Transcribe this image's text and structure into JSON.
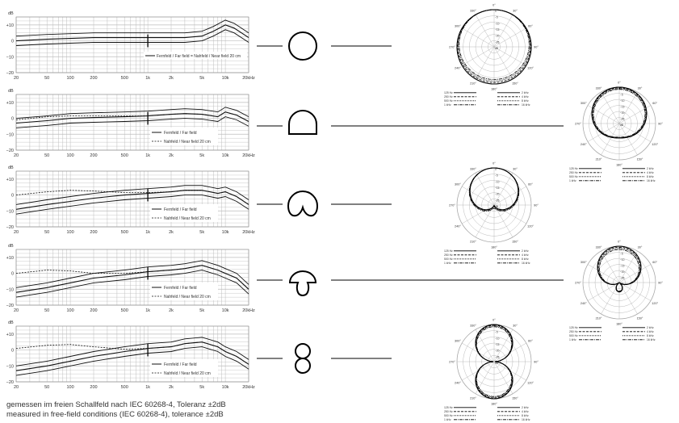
{
  "chart_data": [
    {
      "type": "line",
      "ylabel": "dB",
      "x_ticks": [
        "20",
        "50",
        "100",
        "200",
        "500",
        "1k",
        "2k",
        "5k",
        "10k",
        "20kHz"
      ],
      "y_ticks": [
        "+10",
        "0",
        "−10",
        "−20"
      ],
      "ylim": [
        -20,
        15
      ],
      "xlim_hz": [
        20,
        20000
      ],
      "legend": [
        "Fernfeld / Far field = Nahfeld / Near field 20 cm"
      ],
      "series": [
        {
          "style": "solid",
          "x": [
            20,
            50,
            100,
            200,
            500,
            1000,
            2000,
            3000,
            5000,
            7000,
            10000,
            13000,
            20000
          ],
          "y": [
            0,
            1,
            1.5,
            2,
            2,
            2,
            2,
            2,
            3,
            6,
            10,
            8,
            2
          ]
        }
      ],
      "pattern": "omnidirectional"
    },
    {
      "type": "line",
      "ylabel": "dB",
      "x_ticks": [
        "20",
        "50",
        "100",
        "200",
        "500",
        "1k",
        "2k",
        "5k",
        "10k",
        "20kHz"
      ],
      "y_ticks": [
        "+10",
        "0",
        "−10",
        "−20"
      ],
      "ylim": [
        -20,
        15
      ],
      "xlim_hz": [
        20,
        20000
      ],
      "legend": [
        "Fernfeld / Far field",
        "Nahfeld / Near field 20 cm"
      ],
      "series": [
        {
          "name": "Fernfeld / Far field",
          "style": "solid",
          "x": [
            20,
            50,
            100,
            200,
            500,
            1000,
            2000,
            3000,
            5000,
            8000,
            10000,
            14000,
            20000
          ],
          "y": [
            -3,
            -1.5,
            0,
            0.5,
            1,
            1.5,
            2.5,
            3,
            2.5,
            1,
            4,
            2,
            -2
          ]
        },
        {
          "name": "Nahfeld / Near field 20 cm",
          "style": "dashed",
          "x": [
            20,
            50,
            100,
            200,
            500,
            1000,
            2000,
            3000,
            5000,
            8000,
            10000,
            14000,
            20000
          ],
          "y": [
            -1,
            1,
            1.5,
            1.5,
            1.5,
            1.5,
            2.5,
            3,
            2.5,
            1,
            4,
            2,
            -2
          ]
        }
      ],
      "pattern": "wide-cardioid"
    },
    {
      "type": "line",
      "ylabel": "dB",
      "x_ticks": [
        "20",
        "50",
        "100",
        "200",
        "500",
        "1k",
        "2k",
        "5k",
        "10k",
        "20kHz"
      ],
      "y_ticks": [
        "+10",
        "0",
        "−10",
        "−20"
      ],
      "ylim": [
        -20,
        15
      ],
      "xlim_hz": [
        20,
        20000
      ],
      "legend": [
        "Fernfeld / Far field",
        "Nahfeld / Near field 20 cm"
      ],
      "series": [
        {
          "name": "Fernfeld / Far field",
          "style": "solid",
          "x": [
            20,
            50,
            100,
            200,
            500,
            1000,
            2000,
            3000,
            5000,
            8000,
            10000,
            14000,
            20000
          ],
          "y": [
            -9,
            -6,
            -4,
            -2,
            0,
            1,
            2,
            3,
            3,
            1,
            2,
            -1,
            -6
          ]
        },
        {
          "name": "Nahfeld / Near field 20 cm",
          "style": "dashed",
          "x": [
            20,
            50,
            100,
            200,
            500,
            1000,
            2000,
            3000,
            5000,
            8000,
            10000,
            14000,
            20000
          ],
          "y": [
            0,
            2,
            3,
            2.5,
            1.5,
            1.5,
            2,
            3,
            3,
            1,
            2,
            -1,
            -6
          ]
        }
      ],
      "pattern": "cardioid"
    },
    {
      "type": "line",
      "ylabel": "dB",
      "x_ticks": [
        "20",
        "50",
        "100",
        "200",
        "500",
        "1k",
        "2k",
        "5k",
        "10k",
        "20kHz"
      ],
      "y_ticks": [
        "+10",
        "0",
        "−10",
        "−20"
      ],
      "ylim": [
        -20,
        15
      ],
      "xlim_hz": [
        20,
        20000
      ],
      "legend": [
        "Fernfeld / Far field",
        "Nahfeld / Near field 20 cm"
      ],
      "series": [
        {
          "name": "Fernfeld / Far field",
          "style": "solid",
          "x": [
            20,
            50,
            100,
            200,
            500,
            1000,
            2000,
            3000,
            5000,
            8000,
            10000,
            14000,
            20000
          ],
          "y": [
            -12,
            -9,
            -6,
            -3,
            -1,
            1,
            2,
            3,
            5,
            2,
            0,
            -3,
            -10
          ]
        },
        {
          "name": "Nahfeld / Near field 20 cm",
          "style": "dashed",
          "x": [
            20,
            50,
            100,
            200,
            500,
            1000,
            2000,
            3000,
            5000,
            8000,
            10000,
            14000,
            20000
          ],
          "y": [
            0,
            2,
            1.5,
            0,
            0,
            1,
            2,
            3,
            5,
            2,
            0,
            -3,
            -10
          ]
        }
      ],
      "pattern": "supercardioid"
    },
    {
      "type": "line",
      "ylabel": "dB",
      "x_ticks": [
        "20",
        "50",
        "100",
        "200",
        "500",
        "1k",
        "2k",
        "5k",
        "10k",
        "20kHz"
      ],
      "y_ticks": [
        "+10",
        "0",
        "−10",
        "−20"
      ],
      "ylim": [
        -20,
        15
      ],
      "xlim_hz": [
        20,
        20000
      ],
      "legend": [
        "Fernfeld / Far field",
        "Nahfeld / Near field 20 cm"
      ],
      "series": [
        {
          "name": "Fernfeld / Far field",
          "style": "solid",
          "x": [
            20,
            50,
            100,
            200,
            500,
            1000,
            2000,
            3000,
            5000,
            8000,
            10000,
            14000,
            20000
          ],
          "y": [
            -13,
            -10,
            -7,
            -4,
            -1,
            1,
            2,
            4,
            5,
            2,
            -1,
            -4,
            -9
          ]
        },
        {
          "name": "Nahfeld / Near field 20 cm",
          "style": "dashed",
          "x": [
            20,
            50,
            100,
            200,
            500,
            1000,
            2000,
            3000,
            5000,
            8000,
            10000,
            14000,
            20000
          ],
          "y": [
            1,
            3,
            3.5,
            2,
            0.5,
            1,
            2,
            4,
            5,
            2,
            -1,
            -4,
            -9
          ]
        }
      ],
      "pattern": "figure-8"
    }
  ],
  "polar_plots": [
    {
      "pattern": "omnidirectional",
      "angle_labels": [
        "0°",
        "90°",
        "180°",
        "270°",
        "30°",
        "60°",
        "120°",
        "150°",
        "210°",
        "240°",
        "300°",
        "330°"
      ],
      "rings_db": [
        "0",
        "−5",
        "−10",
        "−15",
        "−20",
        "−25",
        "dB"
      ],
      "legend": [
        "125 Hz",
        "250 Hz",
        "500 Hz",
        "1 kHz",
        "2 kHz",
        "4 kHz",
        "8 kHz",
        "16 kHz"
      ]
    },
    {
      "pattern": "wide-cardioid",
      "angle_labels": [
        "0°",
        "90°",
        "180°",
        "270°",
        "30°",
        "60°",
        "120°",
        "150°",
        "210°",
        "240°",
        "300°",
        "330°"
      ],
      "rings_db": [
        "0",
        "−5",
        "−10",
        "−15",
        "−20",
        "−25",
        "dB"
      ],
      "legend": [
        "125 Hz",
        "250 Hz",
        "500 Hz",
        "1 kHz",
        "2 kHz",
        "4 kHz",
        "8 kHz",
        "16 kHz"
      ]
    },
    {
      "pattern": "cardioid",
      "angle_labels": [
        "0°",
        "90°",
        "180°",
        "270°",
        "30°",
        "60°",
        "120°",
        "150°",
        "210°",
        "240°",
        "300°",
        "330°"
      ],
      "rings_db": [
        "0",
        "−5",
        "−10",
        "−15",
        "−20",
        "−25",
        "dB"
      ],
      "legend": [
        "125 Hz",
        "250 Hz",
        "500 Hz",
        "1 kHz",
        "2 kHz",
        "4 kHz",
        "8 kHz",
        "16 kHz"
      ]
    },
    {
      "pattern": "supercardioid",
      "angle_labels": [
        "0°",
        "90°",
        "180°",
        "270°",
        "30°",
        "60°",
        "120°",
        "150°",
        "210°",
        "240°",
        "300°",
        "330°"
      ],
      "rings_db": [
        "0",
        "−5",
        "−10",
        "−15",
        "−20",
        "−25",
        "dB"
      ],
      "legend": [
        "125 Hz",
        "250 Hz",
        "500 Hz",
        "1 kHz",
        "2 kHz",
        "4 kHz",
        "8 kHz",
        "16 kHz"
      ]
    },
    {
      "pattern": "figure-8",
      "angle_labels": [
        "0°",
        "90°",
        "180°",
        "270°",
        "30°",
        "60°",
        "120°",
        "150°",
        "210°",
        "240°",
        "300°",
        "330°"
      ],
      "rings_db": [
        "0",
        "−5",
        "−10",
        "−15",
        "−20",
        "−25",
        "dB"
      ],
      "legend": [
        "125 Hz",
        "250 Hz",
        "500 Hz",
        "1 kHz",
        "2 kHz",
        "4 kHz",
        "8 kHz",
        "16 kHz"
      ]
    }
  ],
  "footnote": {
    "line1": "gemessen im freien Schallfeld nach IEC 60268-4, Toleranz ±2dB",
    "line2": "measured in free-field conditions (IEC 60268-4), tolerance ±2dB"
  },
  "colors": {
    "line": "#111111",
    "grid": "#bdbdbd",
    "text": "#333333"
  }
}
